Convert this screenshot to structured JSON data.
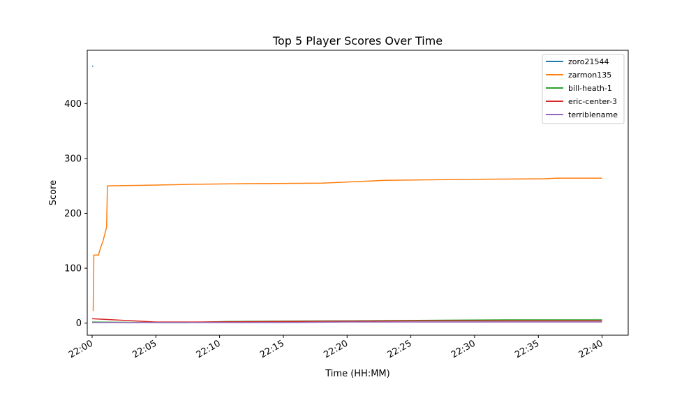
{
  "chart_data": {
    "type": "line",
    "title": "Top 5 Player Scores Over Time",
    "xlabel": "Time (HH:MM)",
    "ylabel": "Score",
    "xlim": [
      "21:59:37",
      "22:42:03"
    ],
    "ylim": [
      -22,
      497
    ],
    "x_ticks": [
      "22:00",
      "22:05",
      "22:10",
      "22:15",
      "22:20",
      "22:25",
      "22:30",
      "22:35",
      "22:40"
    ],
    "y_ticks": [
      0,
      100,
      200,
      300,
      400
    ],
    "grid": false,
    "legend_position": "top-right",
    "series": [
      {
        "name": "zoro21544",
        "color": "#1f77b4",
        "points": [
          [
            "22:00:00",
            468
          ],
          [
            "22:00:05",
            468
          ]
        ]
      },
      {
        "name": "zarmon135",
        "color": "#ff7f0e",
        "points": [
          [
            "22:00:05",
            22
          ],
          [
            "22:00:06",
            60
          ],
          [
            "22:00:08",
            124
          ],
          [
            "22:00:30",
            124
          ],
          [
            "22:00:40",
            138
          ],
          [
            "22:00:50",
            148
          ],
          [
            "22:01:05",
            170
          ],
          [
            "22:01:08",
            175
          ],
          [
            "22:01:12",
            250
          ],
          [
            "22:04:00",
            251
          ],
          [
            "22:08:00",
            253
          ],
          [
            "22:12:00",
            254
          ],
          [
            "22:18:00",
            255
          ],
          [
            "22:19:00",
            256
          ],
          [
            "22:21:00",
            258
          ],
          [
            "22:23:00",
            260
          ],
          [
            "22:30:00",
            262
          ],
          [
            "22:35:30",
            263
          ],
          [
            "22:36:30",
            264
          ],
          [
            "22:40:00",
            264
          ]
        ]
      },
      {
        "name": "bill-heath-1",
        "color": "#2ca02c",
        "points": [
          [
            "22:00:00",
            2
          ],
          [
            "22:05:00",
            1
          ],
          [
            "22:07:30",
            1
          ],
          [
            "22:10:30",
            3
          ],
          [
            "22:18:30",
            4
          ],
          [
            "22:32:30",
            6
          ],
          [
            "22:40:00",
            6
          ]
        ]
      },
      {
        "name": "eric-center-3",
        "color": "#d62728",
        "points": [
          [
            "22:00:00",
            8
          ],
          [
            "22:05:00",
            2
          ],
          [
            "22:08:00",
            2
          ],
          [
            "22:15:00",
            3
          ],
          [
            "22:25:00",
            4
          ],
          [
            "22:35:00",
            4
          ],
          [
            "22:40:00",
            4
          ]
        ]
      },
      {
        "name": "terriblename",
        "color": "#9467bd",
        "points": [
          [
            "22:00:00",
            1
          ],
          [
            "22:05:00",
            1
          ],
          [
            "22:10:00",
            1
          ],
          [
            "22:15:00",
            1
          ],
          [
            "22:20:00",
            2
          ],
          [
            "22:30:00",
            2
          ],
          [
            "22:40:00",
            2
          ]
        ]
      }
    ]
  }
}
